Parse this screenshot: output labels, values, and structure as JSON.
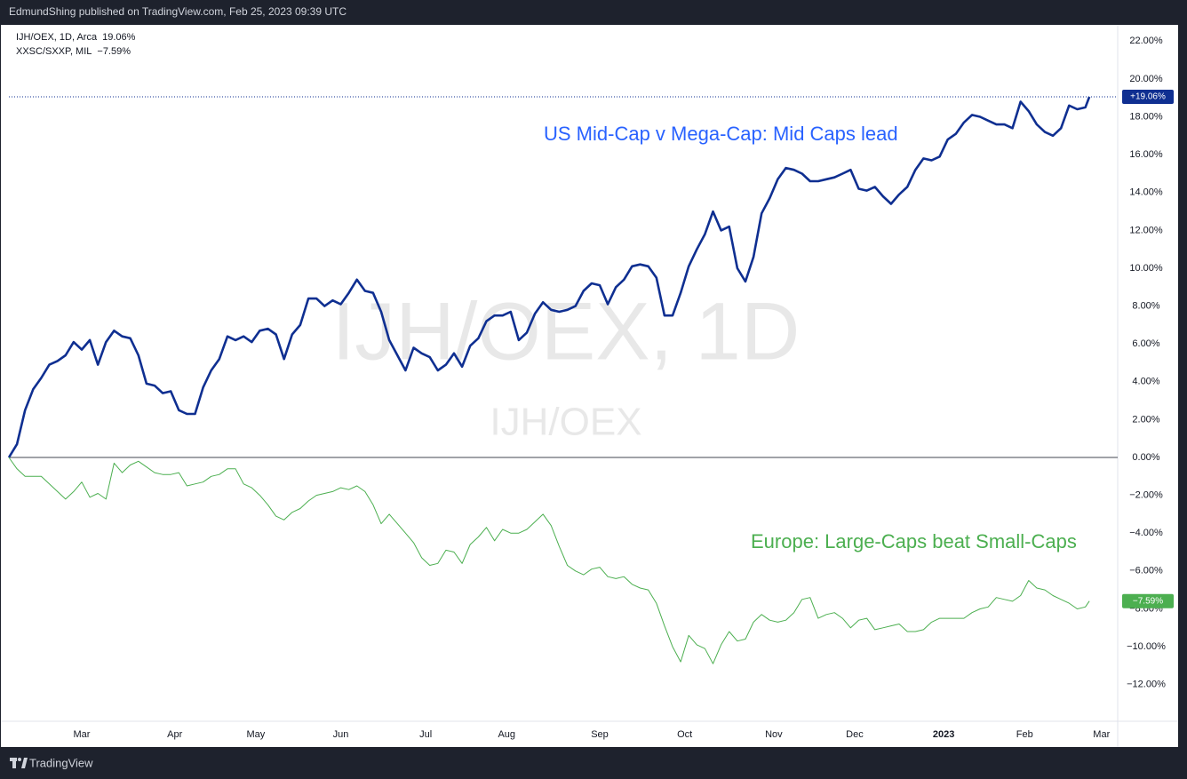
{
  "header": {
    "title": "EdmundShing published on TradingView.com, Feb 25, 2023 09:39 UTC"
  },
  "footer": {
    "brand": "TradingView"
  },
  "chart_data": {
    "type": "line",
    "watermark": "IJH/OEX, 1D",
    "watermark_sub": "IJH/OEX",
    "x": [
      0,
      2,
      4,
      6,
      8,
      10,
      12,
      14,
      16,
      18,
      20,
      22,
      24,
      26,
      28,
      30,
      32,
      34,
      36,
      38,
      40,
      42,
      44,
      46,
      48,
      50,
      52,
      54,
      56,
      58,
      60,
      62,
      64,
      66,
      68,
      70,
      72,
      74,
      76,
      78,
      80,
      82,
      84,
      86,
      88,
      90,
      92,
      94,
      96,
      98,
      100,
      102,
      104,
      106,
      108,
      110,
      112,
      114,
      116,
      118,
      120,
      122,
      124,
      126,
      128,
      130,
      132,
      134,
      136,
      138,
      140,
      142,
      144,
      146,
      148,
      150,
      152,
      154,
      156,
      158,
      160,
      162,
      164,
      166,
      168,
      170,
      172,
      174,
      176,
      178,
      180,
      182,
      184,
      186,
      188,
      190,
      192,
      194,
      196,
      198,
      200,
      202,
      204,
      206,
      208,
      210,
      212,
      214,
      216,
      218,
      220,
      222,
      224,
      226,
      228,
      230,
      232,
      234,
      236,
      238,
      240,
      242,
      244,
      246,
      248,
      250,
      252,
      254,
      256,
      258,
      260,
      262,
      264,
      266,
      267
    ],
    "xlim": [
      0,
      274
    ],
    "xticks": [
      {
        "value": 18,
        "label": "Mar"
      },
      {
        "value": 41,
        "label": "Apr"
      },
      {
        "value": 61,
        "label": "May"
      },
      {
        "value": 82,
        "label": "Jun"
      },
      {
        "value": 103,
        "label": "Jul"
      },
      {
        "value": 123,
        "label": "Aug"
      },
      {
        "value": 146,
        "label": "Sep"
      },
      {
        "value": 167,
        "label": "Oct"
      },
      {
        "value": 189,
        "label": "Nov"
      },
      {
        "value": 209,
        "label": "Dec"
      },
      {
        "value": 231,
        "label": "2023"
      },
      {
        "value": 251,
        "label": "Feb"
      },
      {
        "value": 270,
        "label": "Mar"
      }
    ],
    "ylim": [
      -13.94,
      22.86
    ],
    "yticks": [
      {
        "value": -12,
        "label": "−12.00%"
      },
      {
        "value": -10,
        "label": "−10.00%"
      },
      {
        "value": -8,
        "label": "−8.00%"
      },
      {
        "value": -6,
        "label": "−6.00%"
      },
      {
        "value": -4,
        "label": "−4.00%"
      },
      {
        "value": -2,
        "label": "−2.00%"
      },
      {
        "value": 0,
        "label": "0.00%"
      },
      {
        "value": 2,
        "label": "2.00%"
      },
      {
        "value": 4,
        "label": "4.00%"
      },
      {
        "value": 6,
        "label": "6.00%"
      },
      {
        "value": 8,
        "label": "8.00%"
      },
      {
        "value": 10,
        "label": "10.00%"
      },
      {
        "value": 12,
        "label": "12.00%"
      },
      {
        "value": 14,
        "label": "14.00%"
      },
      {
        "value": 16,
        "label": "16.00%"
      },
      {
        "value": 18,
        "label": "18.00%"
      },
      {
        "value": 20,
        "label": "20.00%"
      },
      {
        "value": 22,
        "label": "22.00%"
      }
    ],
    "series": [
      {
        "name": "IJH/OEX, 1D, Arca",
        "color": "#0f2f91",
        "legend_value": "19.06%",
        "price_label": "+19.06%",
        "values": [
          0,
          0.7,
          2.5,
          3.6,
          4.2,
          4.9,
          5.1,
          5.4,
          6.1,
          5.7,
          6.2,
          4.9,
          6.1,
          6.7,
          6.4,
          6.3,
          5.4,
          3.9,
          3.8,
          3.4,
          3.5,
          2.5,
          2.3,
          2.3,
          3.7,
          4.6,
          5.2,
          6.4,
          6.2,
          6.4,
          6.1,
          6.7,
          6.8,
          6.5,
          5.2,
          6.5,
          7.0,
          8.4,
          8.4,
          8.0,
          8.3,
          8.1,
          8.7,
          9.4,
          8.8,
          8.7,
          7.7,
          6.2,
          5.4,
          4.6,
          5.8,
          5.5,
          5.3,
          4.6,
          4.9,
          5.5,
          4.8,
          5.9,
          6.3,
          7.2,
          7.5,
          7.5,
          7.7,
          6.2,
          6.6,
          7.6,
          8.2,
          7.8,
          7.7,
          7.8,
          8.0,
          8.8,
          9.2,
          9.1,
          8.1,
          9.0,
          9.4,
          10.1,
          10.2,
          10.1,
          9.5,
          7.5,
          7.5,
          8.7,
          10.1,
          11.0,
          11.8,
          13.0,
          12.0,
          12.2,
          10.0,
          9.3,
          10.6,
          12.9,
          13.7,
          14.7,
          15.3,
          15.2,
          15.0,
          14.6,
          14.6,
          14.7,
          14.8,
          15.0,
          15.2,
          14.2,
          14.1,
          14.3,
          13.8,
          13.4,
          13.9,
          14.3,
          15.2,
          15.8,
          15.7,
          15.9,
          16.8,
          17.1,
          17.7,
          18.1,
          18.0,
          17.8,
          17.6,
          17.6,
          17.4,
          18.8,
          18.3,
          17.6,
          17.2,
          17.0,
          17.4,
          18.6,
          18.4,
          18.5,
          19.06
        ]
      },
      {
        "name": "XXSC/SXXP, MIL",
        "color": "#4caf50",
        "legend_value": "−7.59%",
        "price_label": "−7.59%",
        "values": [
          0,
          -0.6,
          -1.0,
          -1.0,
          -1.0,
          -1.4,
          -1.8,
          -2.2,
          -1.8,
          -1.3,
          -2.1,
          -1.9,
          -2.2,
          -0.3,
          -0.8,
          -0.4,
          -0.2,
          -0.5,
          -0.8,
          -0.9,
          -0.9,
          -0.8,
          -1.5,
          -1.4,
          -1.3,
          -1.0,
          -0.9,
          -0.6,
          -0.6,
          -1.4,
          -1.6,
          -2.0,
          -2.5,
          -3.1,
          -3.3,
          -2.9,
          -2.7,
          -2.3,
          -2.0,
          -1.9,
          -1.8,
          -1.6,
          -1.7,
          -1.5,
          -1.8,
          -2.5,
          -3.5,
          -3.0,
          -3.5,
          -4.0,
          -4.5,
          -5.3,
          -5.7,
          -5.6,
          -4.9,
          -5.0,
          -5.6,
          -4.6,
          -4.2,
          -3.7,
          -4.4,
          -3.8,
          -4.0,
          -4.0,
          -3.8,
          -3.4,
          -3.0,
          -3.6,
          -4.7,
          -5.7,
          -6.0,
          -6.2,
          -5.9,
          -5.8,
          -6.3,
          -6.4,
          -6.3,
          -6.7,
          -6.9,
          -7.0,
          -7.7,
          -8.9,
          -10.0,
          -10.8,
          -9.4,
          -9.9,
          -10.1,
          -10.9,
          -9.9,
          -9.2,
          -9.7,
          -9.6,
          -8.7,
          -8.3,
          -8.6,
          -8.7,
          -8.6,
          -8.2,
          -7.5,
          -7.4,
          -8.5,
          -8.3,
          -8.2,
          -8.5,
          -9.0,
          -8.6,
          -8.5,
          -9.1,
          -9.0,
          -8.9,
          -8.8,
          -9.2,
          -9.2,
          -9.1,
          -8.7,
          -8.5,
          -8.5,
          -8.5,
          -8.5,
          -8.2,
          -8.0,
          -7.9,
          -7.4,
          -7.5,
          -7.6,
          -7.3,
          -6.5,
          -6.9,
          -7.0,
          -7.3,
          -7.5,
          -7.7,
          -8.0,
          -7.9,
          -7.59
        ]
      }
    ],
    "annotations": [
      {
        "text": "US Mid-Cap v Mega-Cap: Mid Caps lead",
        "color": "#2962ff"
      },
      {
        "text": "Europe: Large-Caps beat Small-Caps",
        "color": "#4caf50"
      }
    ]
  }
}
